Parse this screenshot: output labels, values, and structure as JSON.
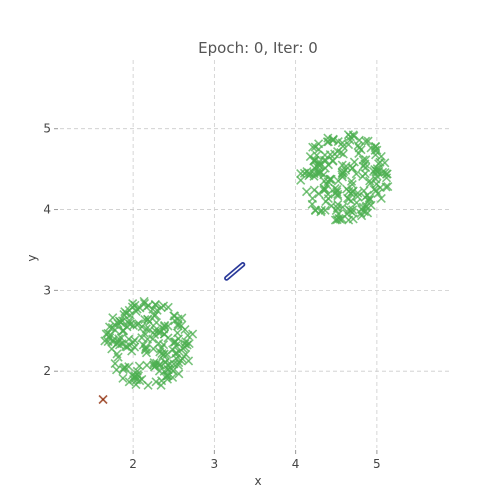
{
  "chart_data": {
    "type": "scatter",
    "title": "Epoch: 0, Iter: 0",
    "xlabel": "x",
    "ylabel": "y",
    "xlim": [
      1.1,
      5.9
    ],
    "ylim": [
      1.05,
      5.85
    ],
    "xticks": [
      2,
      3,
      4,
      5
    ],
    "yticks": [
      2,
      3,
      4,
      5
    ],
    "grid": true,
    "marker": "x",
    "series": [
      {
        "color": "#4caf50",
        "clusters": [
          {
            "center": [
              2.2,
              2.35
            ],
            "spread": 0.55,
            "count": 190
          },
          {
            "center": [
              4.6,
              4.4
            ],
            "spread": 0.55,
            "count": 190
          }
        ]
      },
      {
        "color": "#8b2500",
        "points": [
          [
            1.63,
            1.65
          ]
        ]
      },
      {
        "color": "#2a3a9a",
        "segment": [
          [
            3.15,
            3.15
          ],
          [
            3.35,
            3.32
          ]
        ]
      }
    ]
  }
}
